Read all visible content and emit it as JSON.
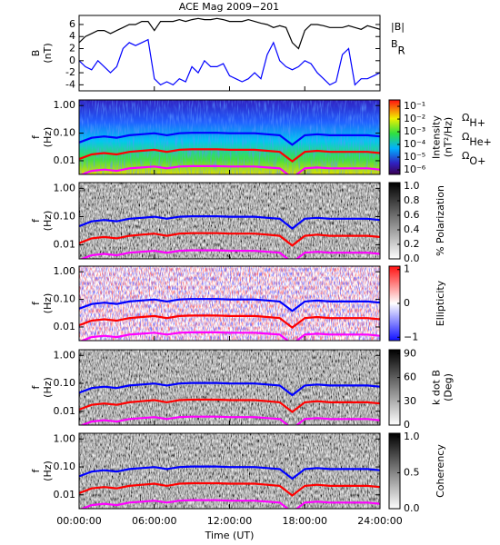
{
  "chart_data": [
    {
      "type": "line",
      "title": "ACE Mag 2009−201",
      "ylabel": [
        "B",
        "(nT)"
      ],
      "x": [
        0,
        0.5,
        1,
        1.5,
        2,
        2.5,
        3,
        3.5,
        4,
        4.5,
        5,
        5.5,
        6,
        6.5,
        7,
        7.5,
        8,
        8.5,
        9,
        9.5,
        10,
        10.5,
        11,
        11.5,
        12,
        12.5,
        13,
        13.5,
        14,
        14.5,
        15,
        15.5,
        16,
        16.5,
        17,
        17.5,
        18,
        18.5,
        19,
        19.5,
        20,
        20.5,
        21,
        21.5,
        22,
        22.5,
        23,
        23.5,
        24
      ],
      "series": [
        {
          "name": "|B|",
          "color": "#000000",
          "values": [
            3,
            4,
            4.5,
            5,
            5,
            4.5,
            5,
            5.5,
            6,
            6,
            6.5,
            6.5,
            5,
            6.5,
            6.5,
            6.5,
            6.8,
            6.5,
            6.8,
            7,
            6.8,
            6.8,
            7,
            6.8,
            6.5,
            6.5,
            6.5,
            6.8,
            6.5,
            6.2,
            6,
            5.5,
            5.8,
            5.5,
            3,
            2,
            5,
            6,
            6,
            5.8,
            5.5,
            5.5,
            5.5,
            5.8,
            5.5,
            5.2,
            5.8,
            5.5,
            5.2
          ]
        },
        {
          "name": "B",
          "name_sub": "R",
          "color": "#0000ff",
          "values": [
            0,
            -1,
            -1.5,
            0,
            -1,
            -2,
            -1,
            2,
            3,
            2.5,
            3,
            3.5,
            -3,
            -4,
            -3.5,
            -4,
            -3,
            -3.5,
            -1,
            -2,
            0,
            -1,
            -1,
            -0.5,
            -2.5,
            -3,
            -3.5,
            -3,
            -2,
            -3,
            1,
            3,
            0,
            -1,
            -1.5,
            -1,
            0,
            -0.5,
            -2,
            -3,
            -4,
            -3.5,
            1,
            2,
            -4,
            -3,
            -3,
            -2.5,
            -2
          ]
        }
      ],
      "xlim": [
        0,
        24
      ],
      "ylim": [
        -5,
        7.5
      ],
      "yticks": [
        -4,
        -2,
        0,
        2,
        4,
        6
      ]
    },
    {
      "type": "spectrogram",
      "ylabel": [
        "f",
        "(Hz)"
      ],
      "log_y": true,
      "xlim": [
        0,
        24
      ],
      "ylim": [
        0.0032,
        1.6
      ],
      "yticks": [
        {
          "value": 1,
          "label": "1.00"
        },
        {
          "value": 0.1,
          "label": "0.10"
        },
        {
          "value": 0.01,
          "label": "0.01"
        }
      ],
      "colormap": "rainbow",
      "colorbar": {
        "label": [
          "Intensity",
          "(nT²/Hz)"
        ],
        "log": true,
        "zlim": [
          4.4e-07,
          0.32
        ],
        "ticks": [
          {
            "value": 0.1,
            "label": "10⁻¹"
          },
          {
            "value": 0.01,
            "label": "10⁻²"
          },
          {
            "value": 0.001,
            "label": "10⁻³"
          },
          {
            "value": 0.0001,
            "label": "10⁻⁴"
          },
          {
            "value": 1e-05,
            "label": "10⁻⁵"
          },
          {
            "value": 1e-06,
            "label": "10⁻⁶"
          }
        ]
      }
    },
    {
      "type": "spectrogram",
      "ylabel": [
        "f",
        "(Hz)"
      ],
      "log_y": true,
      "xlim": [
        0,
        24
      ],
      "ylim": [
        0.0032,
        1.6
      ],
      "yticks": [
        {
          "value": 1,
          "label": "1.00"
        },
        {
          "value": 0.1,
          "label": "0.10"
        },
        {
          "value": 0.01,
          "label": "0.01"
        }
      ],
      "colormap": "gray",
      "colorbar": {
        "label": [
          "% Polarization"
        ],
        "zlim": [
          0,
          1.05
        ],
        "ticks": [
          {
            "value": 1,
            "label": "1.0"
          },
          {
            "value": 0.8,
            "label": "0.8"
          },
          {
            "value": 0.6,
            "label": "0.6"
          },
          {
            "value": 0.4,
            "label": "0.4"
          },
          {
            "value": 0.2,
            "label": "0.2"
          },
          {
            "value": 0,
            "label": "0.0"
          }
        ]
      }
    },
    {
      "type": "spectrogram",
      "ylabel": [
        "f",
        "(Hz)"
      ],
      "log_y": true,
      "xlim": [
        0,
        24
      ],
      "ylim": [
        0.0032,
        1.6
      ],
      "yticks": [
        {
          "value": 1,
          "label": "1.00"
        },
        {
          "value": 0.1,
          "label": "0.10"
        },
        {
          "value": 0.01,
          "label": "0.01"
        }
      ],
      "colormap": "redblue",
      "colorbar": {
        "label": [
          "Ellipticity"
        ],
        "zlim": [
          -1.1,
          1.1
        ],
        "ticks": [
          1,
          0,
          {
            "value": -1,
            "label": "−1"
          }
        ]
      }
    },
    {
      "type": "spectrogram",
      "ylabel": [
        "f",
        "(Hz)"
      ],
      "log_y": true,
      "xlim": [
        0,
        24
      ],
      "ylim": [
        0.0032,
        1.6
      ],
      "yticks": [
        {
          "value": 1,
          "label": "1.00"
        },
        {
          "value": 0.1,
          "label": "0.10"
        },
        {
          "value": 0.01,
          "label": "0.01"
        }
      ],
      "colormap": "gray",
      "colorbar": {
        "label": [
          "k dot B",
          "(Deg)"
        ],
        "zlim": [
          0,
          95
        ],
        "ticks": [
          90,
          60,
          30,
          0
        ]
      }
    },
    {
      "type": "spectrogram",
      "ylabel": [
        "f",
        "(Hz)"
      ],
      "log_y": true,
      "xlim": [
        0,
        24
      ],
      "ylim": [
        0.0032,
        1.6
      ],
      "yticks": [
        {
          "value": 1,
          "label": "1.00"
        },
        {
          "value": 0.1,
          "label": "0.10"
        },
        {
          "value": 0.01,
          "label": "0.01"
        }
      ],
      "colormap": "gray",
      "colorbar": {
        "label": [
          "Coherency"
        ],
        "zlim": [
          0,
          1.05
        ],
        "ticks": [
          {
            "value": 1,
            "label": "1.0"
          },
          {
            "value": 0.5,
            "label": "0.5"
          },
          {
            "value": 0,
            "label": "0.0"
          }
        ]
      },
      "xlabel": "Time (UT)",
      "xticks": [
        {
          "value": 0,
          "label": "00:00:00"
        },
        {
          "value": 6,
          "label": "06:00:00"
        },
        {
          "value": 12,
          "label": "12:00:00"
        },
        {
          "value": 18,
          "label": "18:00:00"
        },
        {
          "value": 24,
          "label": "24:00:00"
        }
      ]
    }
  ],
  "cyclotron_lines": {
    "x": [
      0,
      1,
      2,
      3,
      4,
      5,
      6,
      7,
      8,
      9,
      10,
      11,
      12,
      13,
      14,
      15,
      16,
      17,
      18,
      19,
      20,
      21,
      22,
      23,
      24
    ],
    "series": [
      {
        "name": "Ω",
        "name_sub": "H+",
        "color": "#0000ff",
        "values": [
          0.046,
          0.068,
          0.076,
          0.068,
          0.084,
          0.091,
          0.099,
          0.084,
          0.099,
          0.103,
          0.103,
          0.103,
          0.099,
          0.099,
          0.099,
          0.091,
          0.084,
          0.038,
          0.084,
          0.091,
          0.084,
          0.084,
          0.084,
          0.084,
          0.076
        ]
      },
      {
        "name": "Ω",
        "name_sub": "He+",
        "color": "#ff0000",
        "values": [
          0.0115,
          0.017,
          0.019,
          0.017,
          0.021,
          0.023,
          0.025,
          0.021,
          0.025,
          0.026,
          0.026,
          0.026,
          0.025,
          0.025,
          0.025,
          0.023,
          0.021,
          0.0095,
          0.021,
          0.023,
          0.021,
          0.021,
          0.021,
          0.021,
          0.019
        ]
      },
      {
        "name": "Ω",
        "name_sub": "O+",
        "color": "#ff00ff",
        "values": [
          0.0029,
          0.0043,
          0.0048,
          0.0043,
          0.0053,
          0.0057,
          0.0062,
          0.0053,
          0.0062,
          0.0064,
          0.0064,
          0.0064,
          0.0062,
          0.0062,
          0.0062,
          0.0057,
          0.0053,
          0.0024,
          0.0053,
          0.0057,
          0.0053,
          0.0053,
          0.0053,
          0.0053,
          0.0048
        ]
      }
    ]
  }
}
